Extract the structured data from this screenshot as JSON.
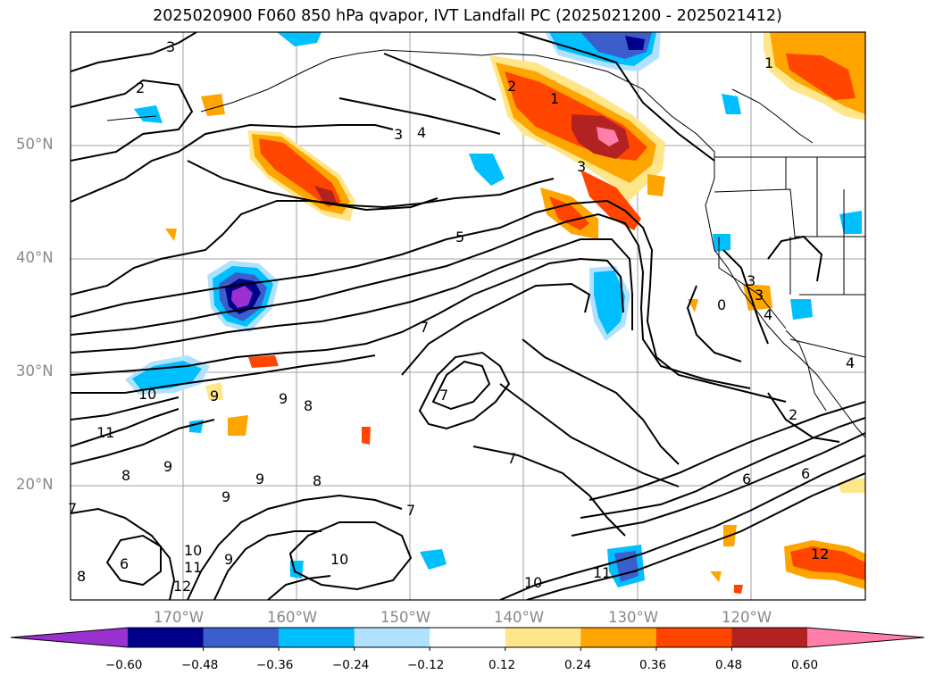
{
  "title": "2025020900 F060 850 hPa qvapor, IVT Landfall PC (2025021200 - 2025021412)",
  "lat_labels": [
    "50°N",
    "40°N",
    "30°N",
    "20°N"
  ],
  "lon_labels": [
    "170°W",
    "160°W",
    "150°W",
    "140°W",
    "130°W",
    "120°W"
  ],
  "colorbar": {
    "ticks": [
      "−0.60",
      "−0.48",
      "−0.36",
      "−0.24",
      "−0.12",
      "0.12",
      "0.24",
      "0.36",
      "0.48",
      "0.60"
    ],
    "colors": [
      "#9b30d0",
      "#00008b",
      "#3a5fcd",
      "#00bfff",
      "#b0e2ff",
      "#ffffff",
      "#ffe68a",
      "#ffa500",
      "#ff4500",
      "#b22222",
      "#ff7fa8"
    ]
  },
  "contour_labels": [
    "3",
    "2",
    "3",
    "4",
    "2",
    "1",
    "3",
    "5",
    "7",
    "10",
    "9",
    "9",
    "8",
    "11",
    "8",
    "9",
    "9",
    "8",
    "7",
    "6",
    "8",
    "10",
    "11",
    "12",
    "9",
    "9",
    "10",
    "7",
    "7",
    "10",
    "11",
    "2",
    "6",
    "6",
    "12",
    "3",
    "3",
    "4",
    "0",
    "4",
    "1",
    "7"
  ],
  "colors": {
    "grid": "#a0a0a0",
    "contour": "#000000",
    "axis_label": "#888888"
  }
}
